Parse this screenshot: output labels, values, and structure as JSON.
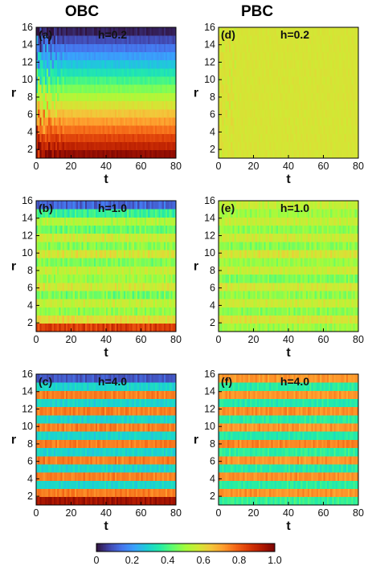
{
  "figure": {
    "column_titles": [
      "OBC",
      "PBC"
    ]
  },
  "colorbar": {
    "min": 0,
    "max": 1,
    "ticks": [
      "0",
      "0.2",
      "0.4",
      "0.6",
      "0.8",
      "1.0"
    ],
    "colormap": "turbo"
  },
  "chart_data": [
    {
      "type": "heatmap",
      "panel": "(a)",
      "label": "h=0.2",
      "boundary": "OBC",
      "row": 0,
      "col": 0,
      "xlabel": "t",
      "ylabel": "r",
      "xlim": [
        0,
        80
      ],
      "ylim": [
        1,
        16
      ],
      "xticks": [
        "0",
        "20",
        "40",
        "60",
        "80"
      ],
      "yticks": [
        "2",
        "4",
        "6",
        "8",
        "10",
        "12",
        "14",
        "16"
      ],
      "pattern": "r-dependent gradient: ~0.0 at r=16 rising to ~0.95 at r=1, fast oscillations for t<20, steady afterwards"
    },
    {
      "type": "heatmap",
      "panel": "(b)",
      "label": "h=1.0",
      "boundary": "OBC",
      "row": 1,
      "col": 0,
      "xlabel": "t",
      "ylabel": "r",
      "xlim": [
        0,
        80
      ],
      "ylim": [
        1,
        16
      ],
      "xticks": [
        "0",
        "20",
        "40",
        "60",
        "80"
      ],
      "yticks": [
        "2",
        "4",
        "6",
        "8",
        "10",
        "12",
        "14",
        "16"
      ],
      "pattern": "horizontal stripes ~0.35-0.65, edge rows r=16 ~0.1 and r=1 ~0.85, temporal flicker"
    },
    {
      "type": "heatmap",
      "panel": "(c)",
      "label": "h=4.0",
      "boundary": "OBC",
      "row": 2,
      "col": 0,
      "xlabel": "t",
      "ylabel": "r",
      "xlim": [
        0,
        80
      ],
      "ylim": [
        1,
        16
      ],
      "xticks": [
        "0",
        "20",
        "40",
        "60",
        "80"
      ],
      "yticks": [
        "2",
        "4",
        "6",
        "8",
        "10",
        "12",
        "14",
        "16"
      ],
      "pattern": "strong stripes alternating ~0.3 and ~0.75, edge rows r=16 ~0.1 and r=1 ~0.95"
    },
    {
      "type": "heatmap",
      "panel": "(d)",
      "label": "h=0.2",
      "boundary": "PBC",
      "row": 0,
      "col": 1,
      "xlabel": "t",
      "ylabel": "r",
      "xlim": [
        0,
        80
      ],
      "ylim": [
        1,
        16
      ],
      "xticks": [
        "0",
        "20",
        "40",
        "60",
        "80"
      ],
      "yticks": [
        "2",
        "4",
        "6",
        "8",
        "10",
        "12",
        "14",
        "16"
      ],
      "pattern": "uniform ~0.5 everywhere with slight flicker at early t"
    },
    {
      "type": "heatmap",
      "panel": "(e)",
      "label": "h=1.0",
      "boundary": "PBC",
      "row": 1,
      "col": 1,
      "xlabel": "t",
      "ylabel": "r",
      "xlim": [
        0,
        80
      ],
      "ylim": [
        1,
        16
      ],
      "xticks": [
        "0",
        "20",
        "40",
        "60",
        "80"
      ],
      "yticks": [
        "2",
        "4",
        "6",
        "8",
        "10",
        "12",
        "14",
        "16"
      ],
      "pattern": "weak stripes ~0.45-0.6 with temporal flicker"
    },
    {
      "type": "heatmap",
      "panel": "(f)",
      "label": "h=4.0",
      "boundary": "PBC",
      "row": 2,
      "col": 1,
      "xlabel": "t",
      "ylabel": "r",
      "xlim": [
        0,
        80
      ],
      "ylim": [
        1,
        16
      ],
      "xticks": [
        "0",
        "20",
        "40",
        "60",
        "80"
      ],
      "yticks": [
        "2",
        "4",
        "6",
        "8",
        "10",
        "12",
        "14",
        "16"
      ],
      "pattern": "strong stripes alternating ~0.35 and ~0.72"
    }
  ]
}
